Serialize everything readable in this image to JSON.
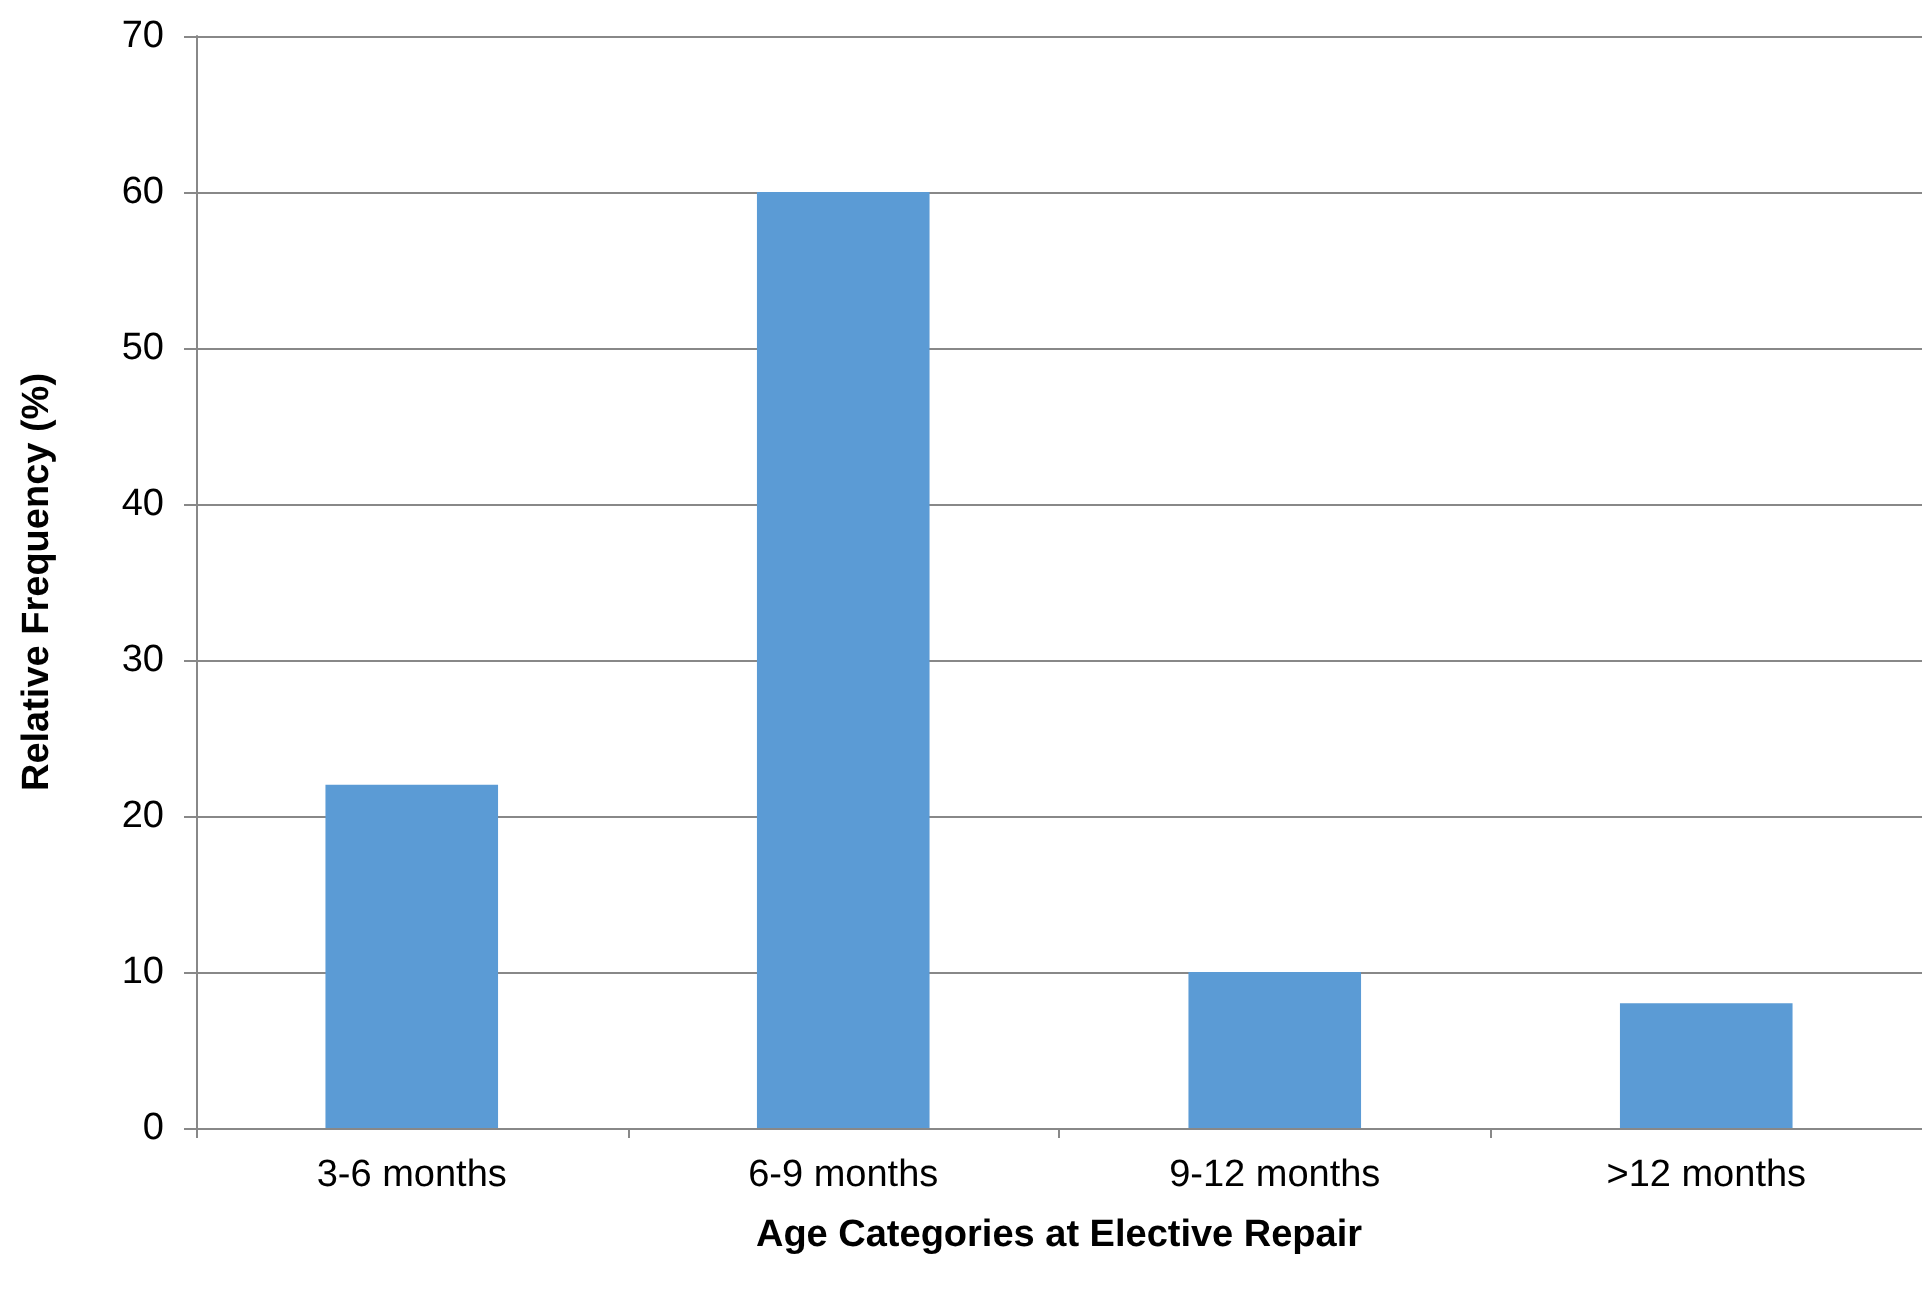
{
  "chart_data": {
    "type": "bar",
    "xlabel": "Age Categories at Elective Repair",
    "ylabel": "Relative Frequency (%)",
    "categories": [
      "3-6 months",
      "6-9 months",
      "9-12 months",
      ">12 months"
    ],
    "values": [
      22,
      60,
      10,
      8
    ],
    "color": "#5b9bd5",
    "ylim": [
      0,
      70
    ],
    "yticks": [
      0,
      10,
      20,
      30,
      40,
      50,
      60,
      70
    ],
    "grid": "y"
  }
}
